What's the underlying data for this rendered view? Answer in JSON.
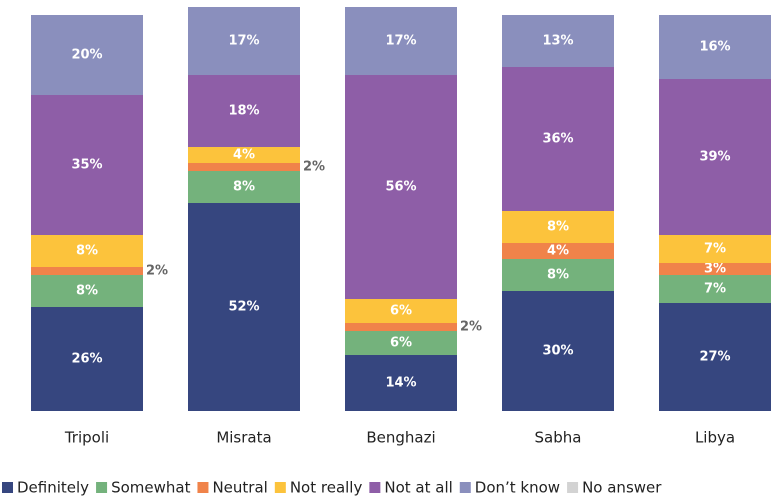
{
  "chart_data": {
    "type": "stacked_bar",
    "categories": [
      "Tripoli",
      "Misrata",
      "Benghazi",
      "Sabha",
      "Libya"
    ],
    "ylim": [
      0,
      100
    ],
    "series": [
      {
        "name": "Definitely",
        "color": "#36467f",
        "values": [
          26,
          52,
          14,
          30,
          27
        ],
        "value_labels": [
          "26%",
          "52%",
          "14%",
          "30%",
          "27%"
        ]
      },
      {
        "name": "Somewhat",
        "color": "#74b27c",
        "values": [
          8,
          8,
          6,
          8,
          7
        ],
        "value_labels": [
          "8%",
          "8%",
          "6%",
          "8%",
          "7%"
        ]
      },
      {
        "name": "Neutral",
        "color": "#f0834a",
        "values": [
          2,
          2,
          2,
          4,
          3
        ],
        "value_labels": [
          "2%",
          "2%",
          "2%",
          "4%",
          "3%"
        ]
      },
      {
        "name": "Not really",
        "color": "#fcc33c",
        "values": [
          8,
          4,
          6,
          8,
          7
        ],
        "value_labels": [
          "8%",
          "4%",
          "6%",
          "8%",
          "7%"
        ]
      },
      {
        "name": "Not at all",
        "color": "#8e5ea7",
        "values": [
          35,
          18,
          56,
          36,
          39
        ],
        "value_labels": [
          "35%",
          "18%",
          "56%",
          "36%",
          "39%"
        ]
      },
      {
        "name": "Don’t know",
        "color": "#8a8fbd",
        "values": [
          20,
          17,
          17,
          13,
          16
        ],
        "value_labels": [
          "20%",
          "17%",
          "17%",
          "13%",
          "16%"
        ]
      },
      {
        "name": "No answer",
        "color": "#d3d3d3",
        "values": [
          0,
          0,
          0,
          0,
          0
        ]
      }
    ]
  }
}
